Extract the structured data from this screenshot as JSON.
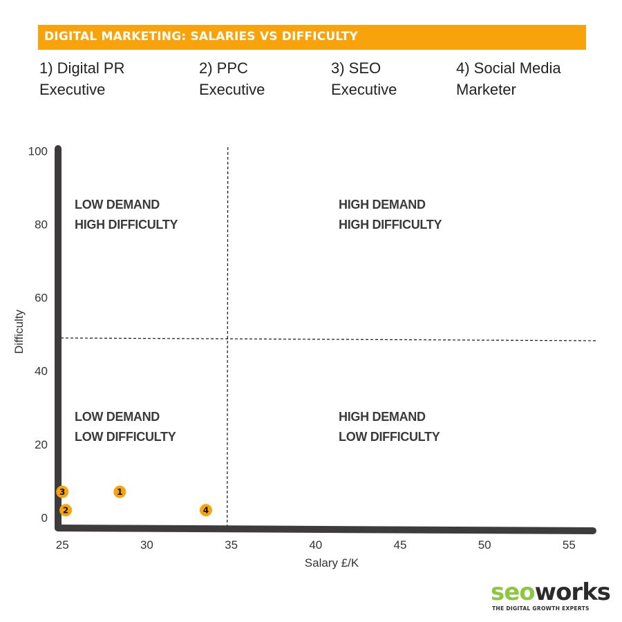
{
  "header": {
    "title": "DIGITAL MARKETING: SALARIES VS DIFFICULTY"
  },
  "legend": [
    {
      "line1": "1) Digital PR",
      "line2": "Executive"
    },
    {
      "line1": "2) PPC",
      "line2": "Executive"
    },
    {
      "line1": "3) SEO",
      "line2": "Executive"
    },
    {
      "line1": "4) Social Media",
      "line2": "Marketer"
    }
  ],
  "logo": {
    "word_a": "seo",
    "word_b": "works",
    "tagline": "THE DIGITAL GROWTH EXPERTS"
  },
  "chart_data": {
    "type": "scatter",
    "title": "DIGITAL MARKETING: SALARIES VS DIFFICULTY",
    "xlabel": "Salary £/K",
    "ylabel": "Difficulty",
    "xlim": [
      24.5,
      56.5
    ],
    "ylim": [
      -4,
      102
    ],
    "x_ticks": [
      25,
      30,
      35,
      40,
      45,
      50,
      55
    ],
    "y_ticks": [
      0,
      20,
      40,
      60,
      80,
      100
    ],
    "grid": false,
    "divider_x": 34.8,
    "divider_y": 49,
    "points": [
      {
        "label": "1",
        "x": 28.4,
        "y": 7
      },
      {
        "label": "2",
        "x": 25.2,
        "y": 2
      },
      {
        "label": "3",
        "x": 25.0,
        "y": 7
      },
      {
        "label": "4",
        "x": 33.5,
        "y": 2
      }
    ],
    "quadrants": [
      {
        "id": "top-left",
        "line1": "LOW DEMAND",
        "line2": "HIGH DIFFICULTY"
      },
      {
        "id": "top-right",
        "line1": "HIGH DEMAND",
        "line2": "HIGH DIFFICULTY"
      },
      {
        "id": "bottom-left",
        "line1": "LOW DEMAND",
        "line2": "LOW DIFFICULTY"
      },
      {
        "id": "bottom-right",
        "line1": "HIGH DEMAND",
        "line2": "LOW DIFFICULTY"
      }
    ],
    "colors": {
      "accent": "#F8A30B",
      "axis": "#3d3b3b",
      "text": "#333333",
      "quadrant_text": "#3a3a3a"
    }
  }
}
